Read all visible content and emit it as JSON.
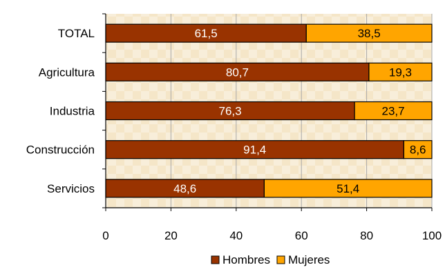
{
  "chart_data": {
    "type": "bar",
    "orientation": "horizontal",
    "stacked": true,
    "categories": [
      "TOTAL",
      "Agricultura",
      "Industria",
      "Construcción",
      "Servicios"
    ],
    "series": [
      {
        "name": "Hombres",
        "values": [
          61.5,
          80.7,
          76.3,
          91.4,
          48.6
        ],
        "labels": [
          "61,5",
          "80,7",
          "76,3",
          "91,4",
          "48,6"
        ],
        "color": "#993300"
      },
      {
        "name": "Mujeres",
        "values": [
          38.5,
          19.3,
          23.7,
          8.6,
          51.4
        ],
        "labels": [
          "38,5",
          "19,3",
          "23,7",
          "8,6",
          "51,4"
        ],
        "color": "#FFA500"
      }
    ],
    "xlim": [
      0,
      100
    ],
    "xticks": [
      0,
      20,
      40,
      60,
      80,
      100
    ],
    "xtick_labels": [
      "0",
      "20",
      "40",
      "60",
      "80",
      "100"
    ],
    "grid": true,
    "legend_position": "bottom",
    "plot_background": "#F5E6C8",
    "label_color": "#ffffff"
  }
}
